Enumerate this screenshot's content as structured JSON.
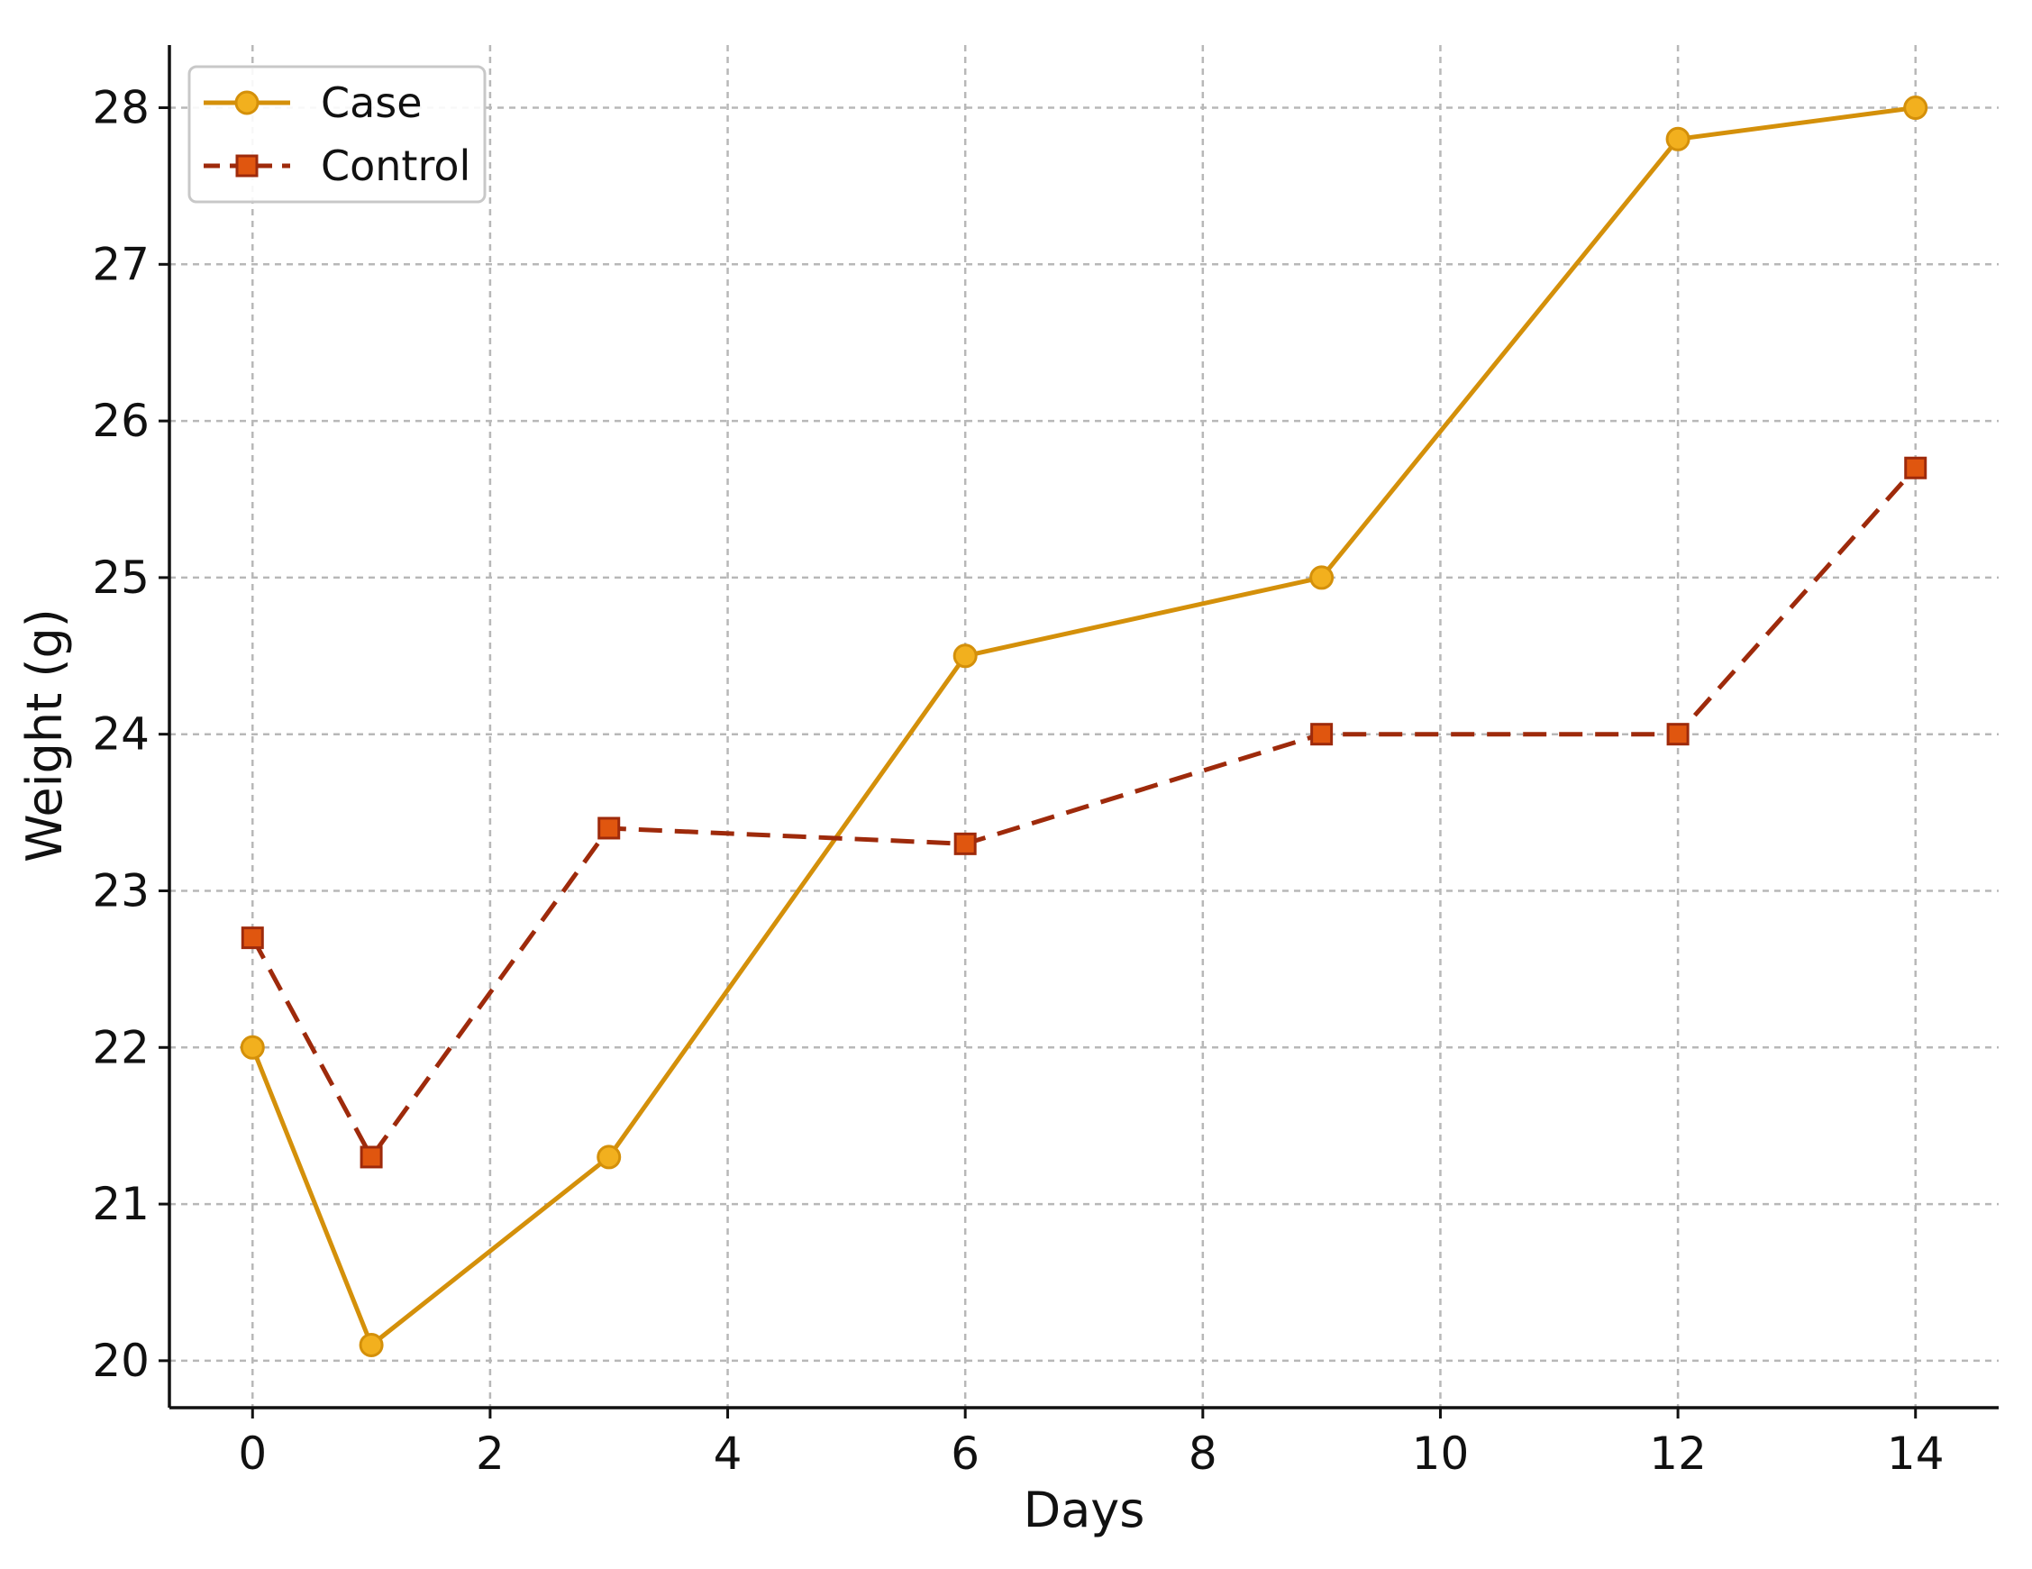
{
  "chart_data": {
    "type": "line",
    "xlabel": "Days",
    "ylabel": "Weight (g)",
    "xlim": [
      -0.7,
      14.7
    ],
    "ylim": [
      19.7,
      28.4
    ],
    "xticks": [
      0,
      2,
      4,
      6,
      8,
      10,
      12,
      14
    ],
    "yticks": [
      20,
      21,
      22,
      23,
      24,
      25,
      26,
      27,
      28
    ],
    "grid": true,
    "legend": {
      "position": "top-left"
    },
    "x": [
      0,
      1,
      3,
      6,
      9,
      12,
      14
    ],
    "series": [
      {
        "name": "Case",
        "values": [
          22.0,
          20.1,
          21.3,
          24.5,
          25.0,
          27.8,
          28.0
        ],
        "color": "#D4900A",
        "marker": "circle",
        "marker_fill": "#F2B01E",
        "line_style": "solid"
      },
      {
        "name": "Control",
        "values": [
          22.7,
          21.3,
          23.4,
          23.3,
          24.0,
          24.0,
          25.7
        ],
        "color": "#9E2A0B",
        "marker": "square",
        "marker_fill": "#E0560F",
        "line_style": "dashed"
      }
    ]
  }
}
